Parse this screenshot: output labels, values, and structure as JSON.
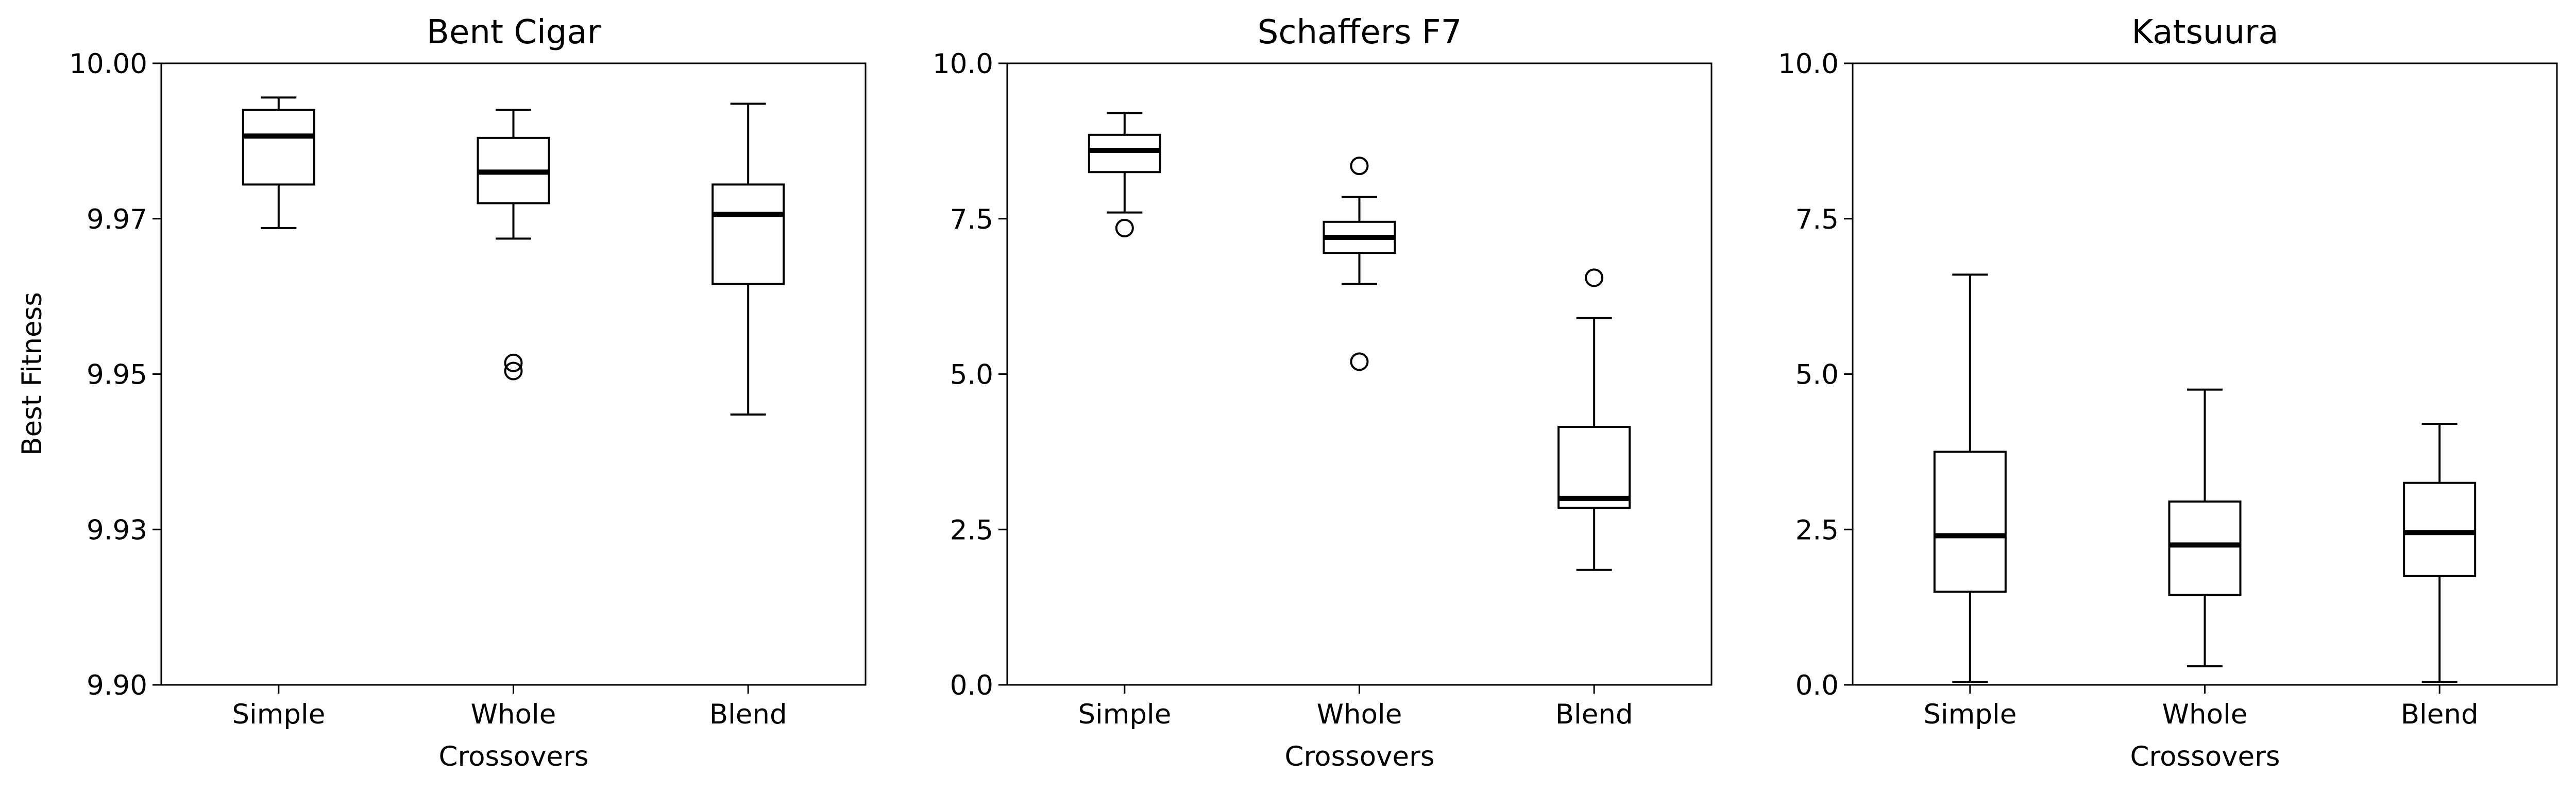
{
  "figure": {
    "ylabel": "Best Fitness",
    "line_color": "#000000",
    "background": "#ffffff"
  },
  "chart_data": [
    {
      "type": "box",
      "title": "Bent Cigar",
      "xlabel": "Crossovers",
      "ylabel": "Best Fitness",
      "categories": [
        "Simple",
        "Whole",
        "Blend"
      ],
      "ylim": [
        9.9,
        10.0
      ],
      "yticks": [
        9.9,
        9.925,
        9.95,
        9.975,
        10.0
      ],
      "yticklabels": [
        "9.90",
        "9.93",
        "9.95",
        "9.97",
        "10.00"
      ],
      "boxes": [
        {
          "whisker_low": 9.9735,
          "q1": 9.9805,
          "median": 9.9883,
          "q3": 9.9925,
          "whisker_high": 9.9945,
          "outliers": []
        },
        {
          "whisker_low": 9.9718,
          "q1": 9.9775,
          "median": 9.9825,
          "q3": 9.988,
          "whisker_high": 9.9925,
          "outliers": [
            9.9518,
            9.9505
          ]
        },
        {
          "whisker_low": 9.9435,
          "q1": 9.9645,
          "median": 9.9757,
          "q3": 9.9805,
          "whisker_high": 9.9935,
          "outliers": []
        }
      ]
    },
    {
      "type": "box",
      "title": "Schaffers F7",
      "xlabel": "Crossovers",
      "ylabel": "",
      "categories": [
        "Simple",
        "Whole",
        "Blend"
      ],
      "ylim": [
        0.0,
        10.0
      ],
      "yticks": [
        0.0,
        2.5,
        5.0,
        7.5,
        10.0
      ],
      "yticklabels": [
        "0.0",
        "2.5",
        "5.0",
        "7.5",
        "10.0"
      ],
      "boxes": [
        {
          "whisker_low": 7.6,
          "q1": 8.25,
          "median": 8.6,
          "q3": 8.85,
          "whisker_high": 9.2,
          "outliers": [
            7.35
          ]
        },
        {
          "whisker_low": 6.45,
          "q1": 6.95,
          "median": 7.2,
          "q3": 7.45,
          "whisker_high": 7.85,
          "outliers": [
            8.35,
            5.2
          ]
        },
        {
          "whisker_low": 1.85,
          "q1": 2.85,
          "median": 3.0,
          "q3": 4.15,
          "whisker_high": 5.9,
          "outliers": [
            6.55
          ]
        }
      ]
    },
    {
      "type": "box",
      "title": "Katsuura",
      "xlabel": "Crossovers",
      "ylabel": "",
      "categories": [
        "Simple",
        "Whole",
        "Blend"
      ],
      "ylim": [
        0.0,
        10.0
      ],
      "yticks": [
        0.0,
        2.5,
        5.0,
        7.5,
        10.0
      ],
      "yticklabels": [
        "0.0",
        "2.5",
        "5.0",
        "7.5",
        "10.0"
      ],
      "boxes": [
        {
          "whisker_low": 0.05,
          "q1": 1.5,
          "median": 2.4,
          "q3": 3.75,
          "whisker_high": 6.6,
          "outliers": []
        },
        {
          "whisker_low": 0.3,
          "q1": 1.45,
          "median": 2.25,
          "q3": 2.95,
          "whisker_high": 4.75,
          "outliers": []
        },
        {
          "whisker_low": 0.05,
          "q1": 1.75,
          "median": 2.45,
          "q3": 3.25,
          "whisker_high": 4.2,
          "outliers": []
        }
      ]
    }
  ]
}
